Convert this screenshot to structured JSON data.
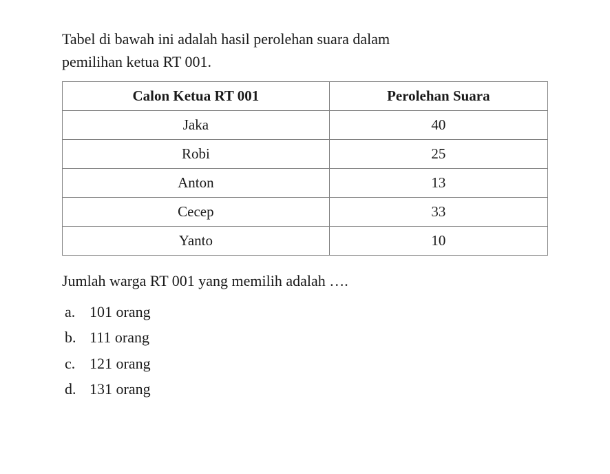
{
  "intro": {
    "line1": "Tabel di bawah ini adalah hasil perolehan suara dalam",
    "line2": "pemilihan ketua RT 001."
  },
  "table": {
    "headers": {
      "col1": "Calon Ketua RT 001",
      "col2": "Perolehan Suara"
    },
    "rows": [
      {
        "name": "Jaka",
        "value": "40"
      },
      {
        "name": "Robi",
        "value": "25"
      },
      {
        "name": "Anton",
        "value": "13"
      },
      {
        "name": "Cecep",
        "value": "33"
      },
      {
        "name": "Yanto",
        "value": "10"
      }
    ],
    "border_color": "#808080",
    "background_color": "#ffffff"
  },
  "question": "Jumlah warga RT 001 yang memilih adalah ….",
  "options": [
    {
      "label": "a.",
      "text": "101 orang"
    },
    {
      "label": "b.",
      "text": "111 orang"
    },
    {
      "label": "c.",
      "text": "121 orang"
    },
    {
      "label": "d.",
      "text": "131 orang"
    }
  ]
}
